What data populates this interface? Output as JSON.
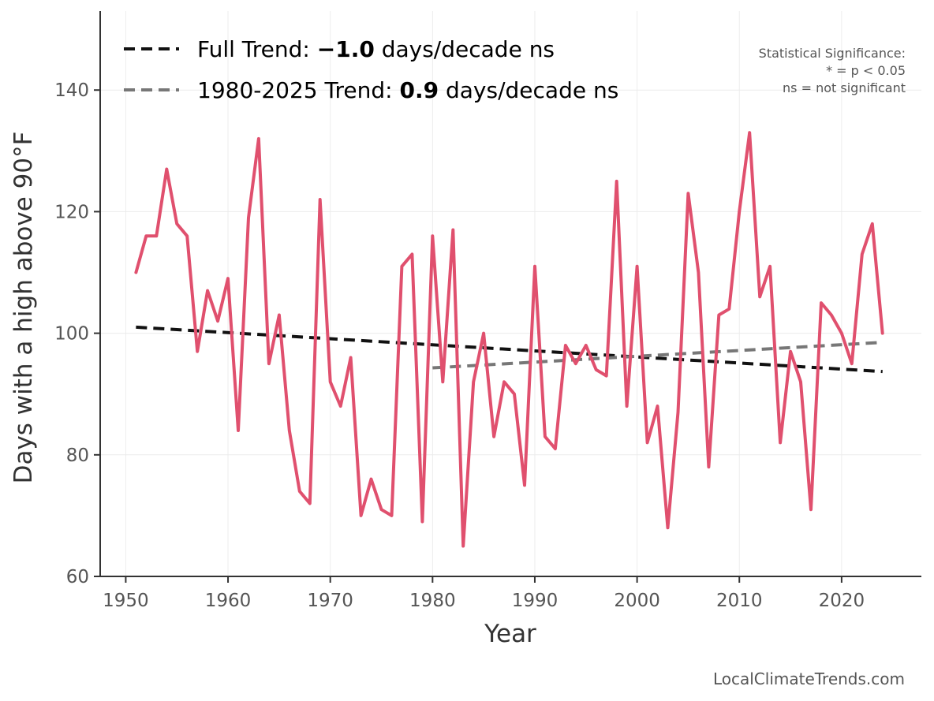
{
  "chart_data": {
    "type": "line",
    "title": "",
    "xlabel": "Year",
    "ylabel": "Days with a high above 90°F",
    "xlim": [
      1947.5,
      2027.8
    ],
    "ylim": [
      60,
      153
    ],
    "xticks": [
      1950,
      1960,
      1970,
      1980,
      1990,
      2000,
      2010,
      2020
    ],
    "yticks": [
      60,
      80,
      100,
      120,
      140
    ],
    "grid": true,
    "series": [
      {
        "name": "Days above 90°F",
        "color": "#e0506e",
        "x": [
          1951,
          1952,
          1953,
          1954,
          1955,
          1956,
          1957,
          1958,
          1959,
          1960,
          1961,
          1962,
          1963,
          1964,
          1965,
          1966,
          1967,
          1968,
          1969,
          1970,
          1971,
          1972,
          1973,
          1974,
          1975,
          1976,
          1977,
          1978,
          1979,
          1980,
          1981,
          1982,
          1983,
          1984,
          1985,
          1986,
          1987,
          1988,
          1989,
          1990,
          1991,
          1992,
          1993,
          1994,
          1995,
          1996,
          1997,
          1998,
          1999,
          2000,
          2001,
          2002,
          2003,
          2004,
          2005,
          2006,
          2007,
          2008,
          2009,
          2010,
          2011,
          2012,
          2013,
          2014,
          2015,
          2016,
          2017,
          2018,
          2019,
          2020,
          2021,
          2022,
          2023,
          2024
        ],
        "values": [
          110,
          116,
          116,
          127,
          118,
          116,
          97,
          107,
          102,
          109,
          84,
          119,
          132,
          95,
          103,
          84,
          74,
          72,
          122,
          92,
          88,
          96,
          70,
          76,
          71,
          70,
          111,
          113,
          69,
          116,
          92,
          117,
          65,
          92,
          100,
          83,
          92,
          90,
          75,
          111,
          83,
          81,
          98,
          95,
          98,
          94,
          93,
          125,
          88,
          111,
          82,
          88,
          68,
          87,
          123,
          110,
          78,
          103,
          104,
          120,
          133,
          106,
          111,
          82,
          97,
          92,
          71,
          105,
          103,
          100,
          95,
          113,
          118,
          100
        ]
      }
    ],
    "trends": [
      {
        "name": "Full Trend",
        "label_prefix": "Full Trend: ",
        "label_value": "−1.0",
        "label_suffix": " days/decade ns",
        "color": "#111111",
        "x": [
          1951,
          2024
        ],
        "values": [
          101.0,
          93.7
        ]
      },
      {
        "name": "1980-2025 Trend",
        "label_prefix": "1980-2025 Trend: ",
        "label_value": "0.9",
        "label_suffix": " days/decade ns",
        "color": "#777777",
        "x": [
          1980,
          2024
        ],
        "values": [
          94.3,
          98.5
        ]
      }
    ],
    "annotations": {
      "significance_title": "Statistical Significance:",
      "significance_line1": "* = p < 0.05",
      "significance_line2": "ns = not significant",
      "credit": "LocalClimateTrends.com"
    }
  }
}
